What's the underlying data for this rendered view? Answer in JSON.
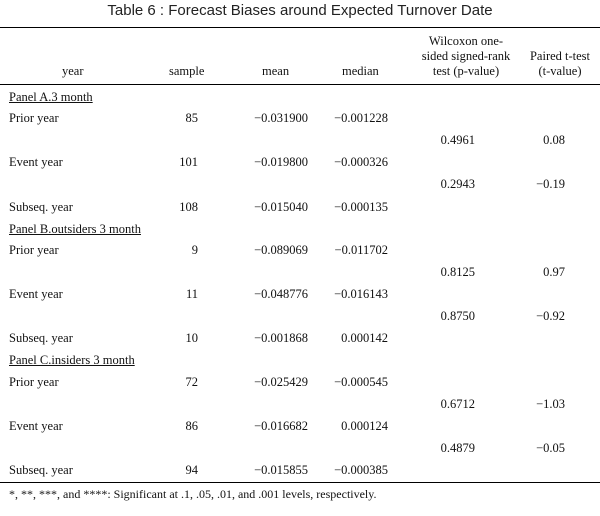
{
  "title": "Table 6 : Forecast Biases around Expected Turnover Date",
  "headers": {
    "year": "year",
    "sample": "sample",
    "mean": "mean",
    "median": "median",
    "wilcoxon": [
      "Wilcoxon one-",
      "sided signed-rank",
      "test (p-value)"
    ],
    "ttest": [
      "Paired t-test",
      "(t-value)"
    ]
  },
  "panels": [
    {
      "label": "Panel A.3 month",
      "rows": [
        {
          "year": "Prior year",
          "sample": "85",
          "mean": "−0.031900",
          "median": "−0.001228"
        },
        {
          "year": "Event year",
          "sample": "101",
          "mean": "−0.019800",
          "median": "−0.000326"
        },
        {
          "year": "Subseq. year",
          "sample": "108",
          "mean": "−0.015040",
          "median": "−0.000135"
        }
      ],
      "tests": [
        {
          "p": "0.4961",
          "t": "0.08"
        },
        {
          "p": "0.2943",
          "t": "−0.19"
        }
      ]
    },
    {
      "label": "Panel B.outsiders 3 month",
      "rows": [
        {
          "year": "Prior year",
          "sample": "9",
          "mean": "−0.089069",
          "median": "−0.011702"
        },
        {
          "year": "Event year",
          "sample": "11",
          "mean": "−0.048776",
          "median": "−0.016143"
        },
        {
          "year": "Subseq. year",
          "sample": "10",
          "mean": "−0.001868",
          "median": "0.000142"
        }
      ],
      "tests": [
        {
          "p": "0.8125",
          "t": "0.97"
        },
        {
          "p": "0.8750",
          "t": "−0.92"
        }
      ]
    },
    {
      "label": "Panel C.insiders 3 month",
      "rows": [
        {
          "year": "Prior year",
          "sample": "72",
          "mean": "−0.025429",
          "median": "−0.000545"
        },
        {
          "year": "Event year",
          "sample": "86",
          "mean": "−0.016682",
          "median": "0.000124"
        },
        {
          "year": "Subseq. year",
          "sample": "94",
          "mean": "−0.015855",
          "median": "−0.000385"
        }
      ],
      "tests": [
        {
          "p": "0.6712",
          "t": "−1.03"
        },
        {
          "p": "0.4879",
          "t": "−0.05"
        }
      ]
    }
  ],
  "footnote": "*, **, ***, and ****: Significant at .1, .05, .01, and .001 levels, respectively."
}
